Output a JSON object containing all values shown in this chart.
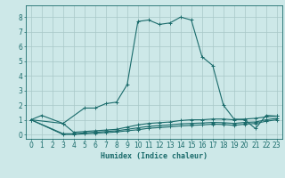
{
  "xlabel": "Humidex (Indice chaleur)",
  "xlim": [
    -0.5,
    23.5
  ],
  "ylim": [
    -0.3,
    8.8
  ],
  "yticks": [
    0,
    1,
    2,
    3,
    4,
    5,
    6,
    7,
    8
  ],
  "xticks": [
    0,
    1,
    2,
    3,
    4,
    5,
    6,
    7,
    8,
    9,
    10,
    11,
    12,
    13,
    14,
    15,
    16,
    17,
    18,
    19,
    20,
    21,
    22,
    23
  ],
  "xtick_labels": [
    "0",
    "1",
    "2",
    "3",
    "4",
    "5",
    "6",
    "7",
    "8",
    "9",
    "10",
    "11",
    "12",
    "13",
    "14",
    "15",
    "16",
    "17",
    "18",
    "19",
    "20",
    "21",
    "22",
    "23"
  ],
  "bg_color": "#cde8e8",
  "line_color": "#1a6b6b",
  "grid_color": "#a8c8c8",
  "lines": [
    [
      1.0,
      1.3,
      null,
      0.75,
      null,
      1.8,
      1.8,
      2.1,
      2.2,
      3.4,
      7.7,
      7.8,
      7.5,
      7.6,
      8.0,
      7.8,
      5.3,
      4.7,
      2.0,
      1.05,
      1.0,
      0.4,
      1.3,
      1.25
    ],
    [
      1.0,
      null,
      null,
      0.75,
      0.15,
      0.2,
      0.25,
      0.3,
      0.35,
      0.5,
      0.65,
      0.75,
      0.8,
      0.85,
      0.95,
      1.0,
      1.0,
      1.05,
      1.05,
      1.0,
      1.05,
      1.1,
      1.2,
      1.25
    ],
    [
      1.0,
      null,
      null,
      0.05,
      0.05,
      0.1,
      0.15,
      0.2,
      0.25,
      0.35,
      0.45,
      0.55,
      0.6,
      0.65,
      0.72,
      0.75,
      0.78,
      0.82,
      0.8,
      0.75,
      0.82,
      0.85,
      1.0,
      1.1
    ],
    [
      1.0,
      null,
      null,
      0.0,
      0.0,
      0.05,
      0.08,
      0.12,
      0.17,
      0.25,
      0.32,
      0.42,
      0.47,
      0.52,
      0.58,
      0.62,
      0.65,
      0.7,
      0.68,
      0.62,
      0.7,
      0.75,
      0.9,
      1.0
    ]
  ]
}
